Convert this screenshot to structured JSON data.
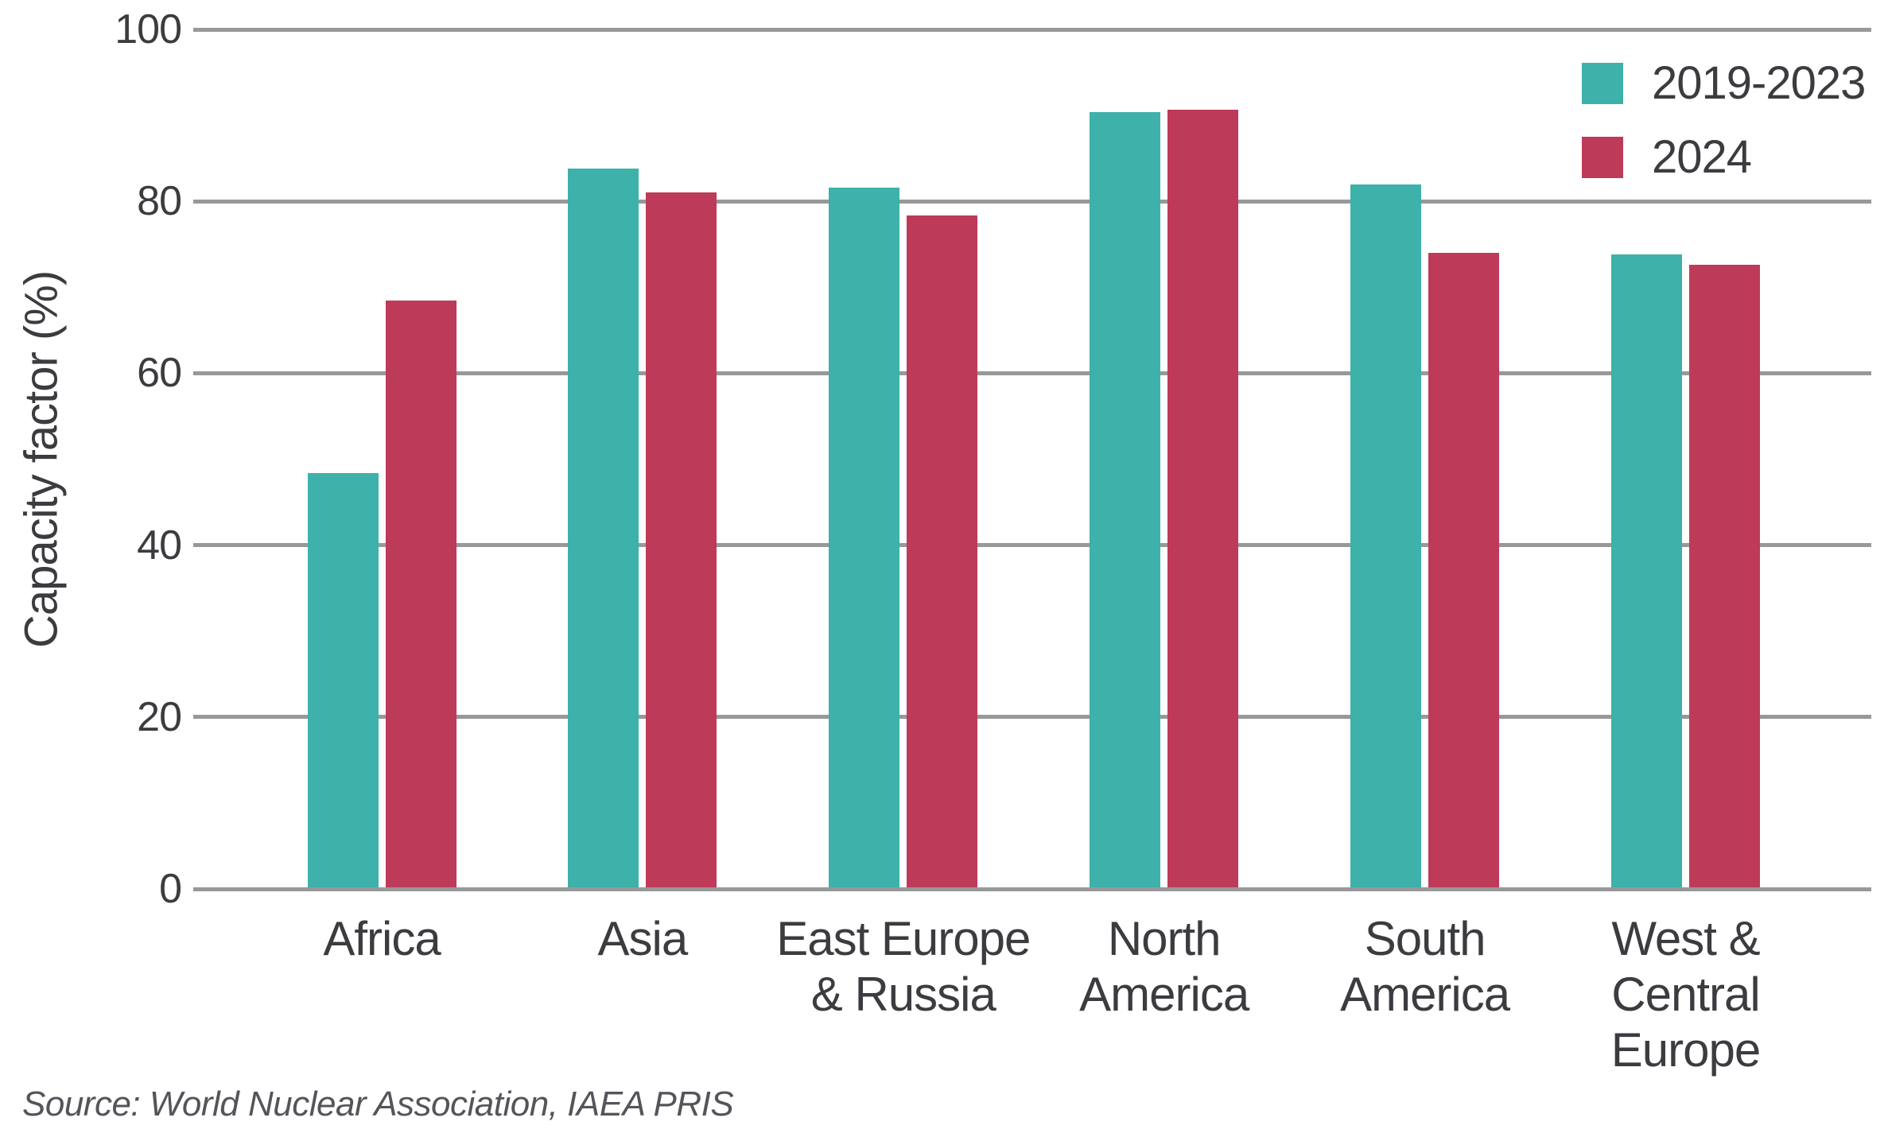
{
  "chart_data": {
    "type": "bar",
    "ylabel": "Capacity factor (%)",
    "xlabel": "",
    "ylim": [
      0,
      100
    ],
    "yticks": [
      0,
      20,
      40,
      60,
      80,
      100
    ],
    "grid": "horizontal",
    "legend_position": "top-right",
    "gridline_color": "#97989a",
    "categories": [
      "Africa",
      "Asia",
      "East Europe\n& Russia",
      "North\nAmerica",
      "South\nAmerica",
      "West &\nCentral\nEurope"
    ],
    "series": [
      {
        "name": "2019-2023",
        "color": "#3db1aa",
        "values": [
          48.4,
          83.8,
          81.6,
          90.4,
          82.0,
          73.8
        ]
      },
      {
        "name": "2024",
        "color": "#be3a59",
        "values": [
          68.5,
          81.0,
          78.4,
          90.7,
          74.0,
          72.6
        ]
      }
    ]
  },
  "source_note": "Source: World Nuclear Association, IAEA PRIS"
}
